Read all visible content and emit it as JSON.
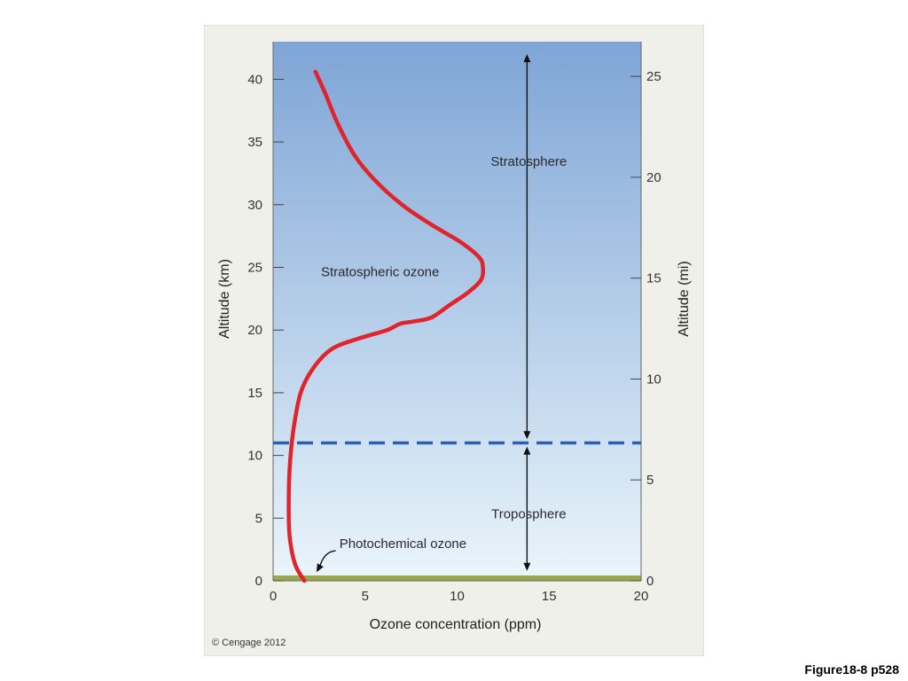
{
  "figure_label": "Figure18-8 p528",
  "copyright": "© Cengage 2012",
  "colors": {
    "sky_top": "#7ea5d6",
    "sky_bottom": "#eaf5fb",
    "ozone_curve": "#e0242c",
    "tropopause": "#2e5fae",
    "ground": "#9aa84a",
    "arrow": "#111111"
  },
  "chart_data": {
    "type": "line",
    "xlabel": "Ozone concentration (ppm)",
    "ylabel": "Altitude (km)",
    "y2label": "Altitude (mi)",
    "xlim": [
      0,
      20
    ],
    "ylim": [
      0,
      43
    ],
    "y2lim": [
      0,
      26.72
    ],
    "x_ticks": [
      0,
      5,
      10,
      15,
      20
    ],
    "y_ticks": [
      0,
      5,
      10,
      15,
      20,
      25,
      30,
      35,
      40
    ],
    "y2_ticks": [
      0,
      5,
      10,
      15,
      20,
      25
    ],
    "grid": false,
    "series": [
      {
        "x": [
          1.7,
          1.2,
          0.9,
          0.85,
          0.9,
          1.1,
          1.5,
          2.2,
          3.2,
          4.6,
          6.2,
          6.9,
          7.7,
          8.6,
          9.6,
          10.6,
          11.3,
          11.4,
          11.2,
          10.2,
          8.5,
          7.0,
          5.5,
          4.4,
          3.5,
          2.8,
          2.3
        ],
        "y": [
          0,
          1.3,
          3.5,
          6.0,
          9.0,
          12.0,
          15.0,
          17.0,
          18.5,
          19.3,
          20.0,
          20.5,
          20.7,
          21.0,
          22.0,
          23.0,
          24.0,
          25.0,
          25.8,
          27.0,
          28.5,
          30.0,
          32.0,
          34.0,
          36.5,
          39.0,
          40.6
        ]
      }
    ],
    "tropopause_km": 11,
    "stratosphere_arrow_km": [
      11,
      42
    ],
    "troposphere_arrow_km": [
      0.8,
      11
    ],
    "arrow_x": 13.8,
    "annotations": [
      "Stratosphere",
      "Stratospheric ozone",
      "Troposphere",
      "Photochemical ozone"
    ]
  }
}
